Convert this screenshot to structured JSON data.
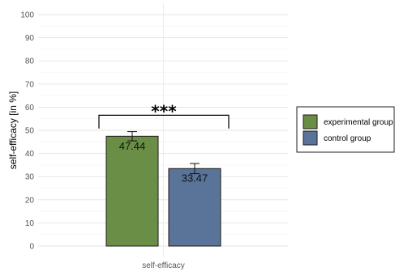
{
  "chart_data": {
    "type": "bar",
    "categories": [
      "self-efficacy"
    ],
    "series": [
      {
        "name": "experimental group",
        "values": [
          47.44
        ],
        "error": [
          2.0
        ],
        "color": "#6a8e45",
        "label": "47.44"
      },
      {
        "name": "control group",
        "values": [
          33.47
        ],
        "error": [
          2.2
        ],
        "color": "#5a7499",
        "label": "33.47"
      }
    ],
    "ylabel": "self-efficacy [in %]",
    "xlabel": "",
    "ylim": [
      0,
      100
    ],
    "yticks": [
      0,
      10,
      20,
      30,
      40,
      50,
      60,
      70,
      80,
      90,
      100
    ],
    "significance": {
      "text": "***",
      "bracket_y": 56.5,
      "drop_y": 50.8
    },
    "grid": true,
    "legend": "right"
  }
}
